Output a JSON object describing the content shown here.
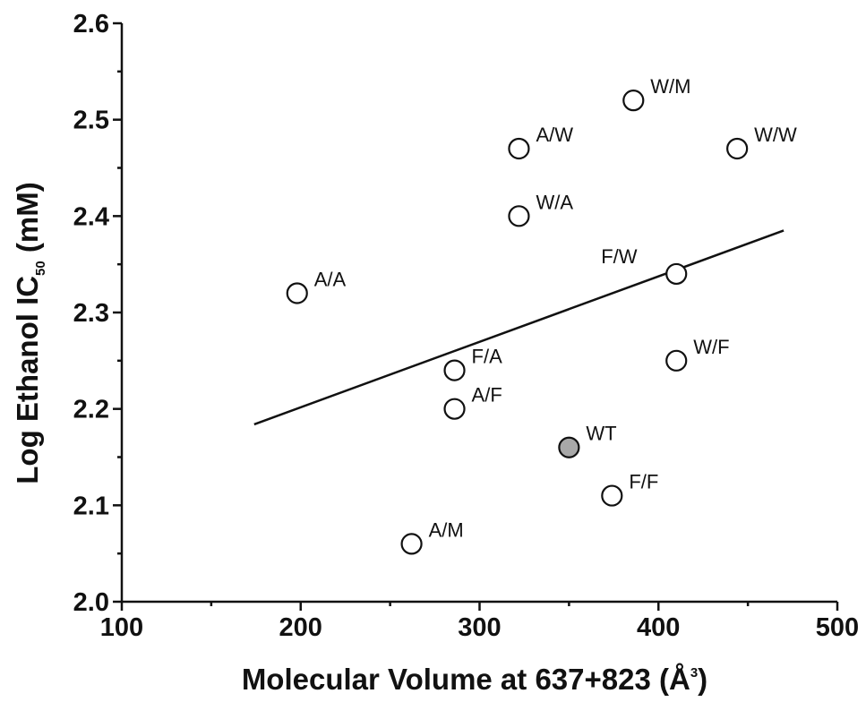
{
  "chart_data": {
    "type": "scatter",
    "xlabel": {
      "main": "Molecular Volume at 637+823 (Å",
      "sup": "3",
      "end": ")"
    },
    "ylabel": {
      "main": "Log Ethanol IC",
      "sub": "50",
      "end": " (mM)"
    },
    "xlim": [
      100,
      500
    ],
    "ylim": [
      2.0,
      2.6
    ],
    "xticks": [
      "100",
      "200",
      "300",
      "400",
      "500"
    ],
    "yticks": [
      "2.0",
      "2.1",
      "2.2",
      "2.3",
      "2.4",
      "2.5",
      "2.6"
    ],
    "points": [
      {
        "label": "A/A",
        "x": 198,
        "y": 2.32,
        "filled": false
      },
      {
        "label": "A/M",
        "x": 262,
        "y": 2.06,
        "filled": false
      },
      {
        "label": "F/A",
        "x": 286,
        "y": 2.24,
        "filled": false
      },
      {
        "label": "A/F",
        "x": 286,
        "y": 2.2,
        "filled": false
      },
      {
        "label": "A/W",
        "x": 322,
        "y": 2.47,
        "filled": false
      },
      {
        "label": "W/A",
        "x": 322,
        "y": 2.4,
        "filled": false
      },
      {
        "label": "WT",
        "x": 350,
        "y": 2.16,
        "filled": true
      },
      {
        "label": "F/F",
        "x": 374,
        "y": 2.11,
        "filled": false
      },
      {
        "label": "W/M",
        "x": 386,
        "y": 2.52,
        "filled": false
      },
      {
        "label": "F/W",
        "x": 410,
        "y": 2.34,
        "filled": false
      },
      {
        "label": "W/F",
        "x": 410,
        "y": 2.25,
        "filled": false
      },
      {
        "label": "W/W",
        "x": 444,
        "y": 2.47,
        "filled": false
      }
    ],
    "fit_line": {
      "x": [
        174,
        470
      ],
      "y": [
        2.184,
        2.385
      ]
    },
    "colors": {
      "marker_fill": "#ffffff",
      "marker_filled": "#a8a8a8",
      "stroke": "#111111"
    }
  }
}
